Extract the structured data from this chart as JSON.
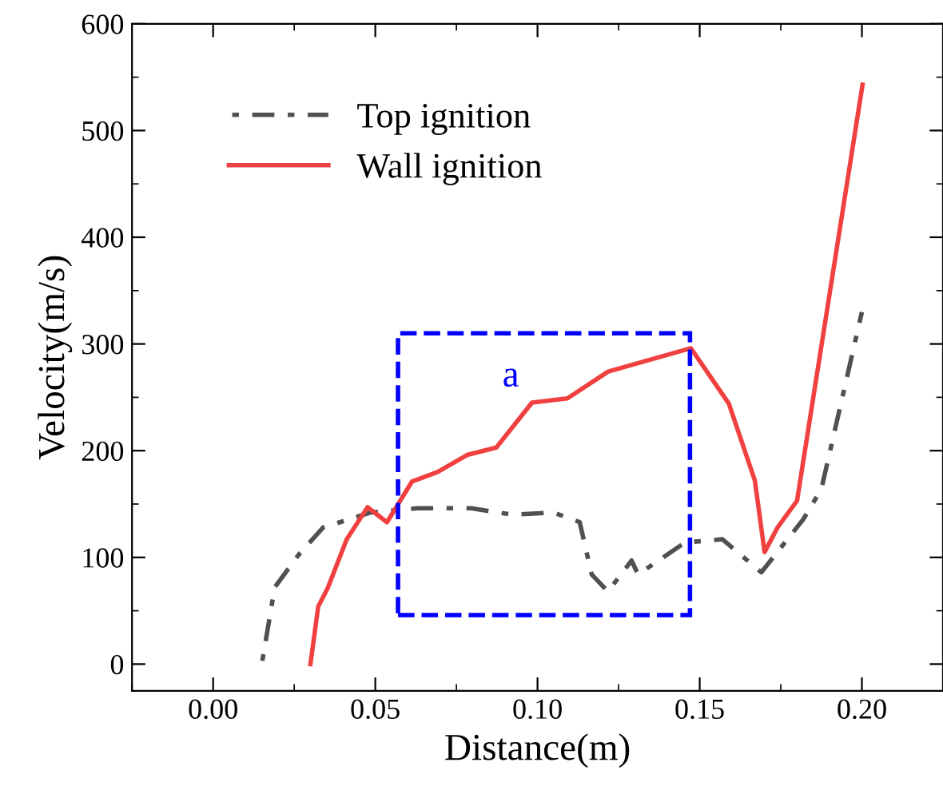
{
  "chart_data": {
    "type": "line",
    "xlabel": "Distance(m)",
    "ylabel": "Velocity(m/s)",
    "xlim": [
      -0.025,
      0.225
    ],
    "xticks": [
      {
        "value": 0,
        "label": "0.00"
      },
      {
        "value": 0.05,
        "label": "0.05"
      },
      {
        "value": 0.1,
        "label": "0.10"
      },
      {
        "value": 0.15,
        "label": "0.15"
      },
      {
        "value": 0.2,
        "label": "0.20"
      }
    ],
    "ylim": [
      -25,
      600
    ],
    "yticks": [
      0,
      100,
      200,
      300,
      400,
      500,
      600
    ],
    "legend": "top left",
    "grid": false,
    "series": [
      {
        "name": "Top ignition",
        "color": "#505050",
        "line_style": "dashdot",
        "x": [
          0.015,
          0.019,
          0.0265,
          0.0339,
          0.0485,
          0.063,
          0.0796,
          0.0924,
          0.105,
          0.113,
          0.1167,
          0.1217,
          0.129,
          0.131,
          0.1455,
          0.157,
          0.169,
          0.182,
          0.1875,
          0.2
        ],
        "values": [
          0,
          72,
          103,
          128,
          142,
          146,
          146,
          140,
          142,
          133,
          84,
          68,
          97,
          84,
          114,
          117,
          86,
          136,
          164,
          330
        ]
      },
      {
        "name": "Wall ignition",
        "color": "#f04040",
        "line_style": "solid",
        "x": [
          0.03,
          0.0324,
          0.0353,
          0.0412,
          0.0476,
          0.0536,
          0.0613,
          0.0692,
          0.0783,
          0.0873,
          0.0983,
          0.1092,
          0.1217,
          0.1473,
          0.159,
          0.167,
          0.17,
          0.174,
          0.18,
          0.2002
        ],
        "values": [
          0,
          54,
          71,
          117,
          147,
          133,
          171,
          180,
          196,
          203,
          245,
          249,
          274,
          296,
          244,
          172,
          105,
          128,
          153,
          543
        ]
      }
    ],
    "annotations": [
      "a"
    ]
  }
}
